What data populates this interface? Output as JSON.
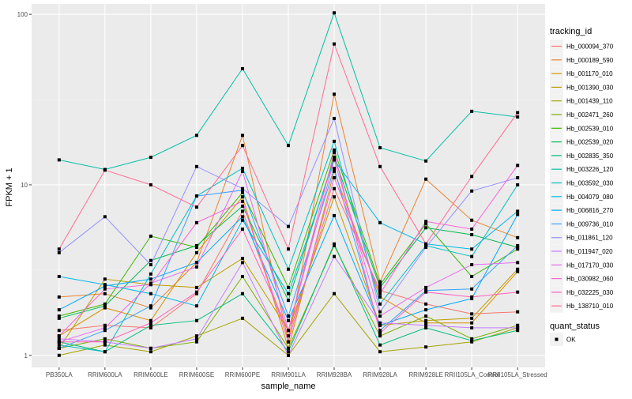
{
  "chart_data": {
    "type": "line",
    "xlabel": "sample_name",
    "ylabel": "FPKM + 1",
    "yscale": "log10",
    "ylim": [
      0.85,
      115
    ],
    "yticks": [
      1,
      10,
      100
    ],
    "ytick_labels": [
      "1",
      "10",
      "100"
    ],
    "grid": true,
    "legend_position": "right",
    "categories": [
      "PB350LA",
      "RRIM600LA",
      "RRIM600LE",
      "RRIM600SE",
      "RRIM600PE",
      "RRIM901LA",
      "RRIM928BA",
      "RRIM928LA",
      "RRIM928LE",
      "RRII105LA_Control",
      "RRII105LA_Stressed"
    ],
    "legend_color_title": "tracking_id",
    "legend_shape_title": "quant_status",
    "legend_shape_items": [
      {
        "label": "OK",
        "shape": "square"
      }
    ],
    "series": [
      {
        "name": "Hb_000094_370",
        "color": "#F8766D",
        "values": [
          1.4,
          1.5,
          1.45,
          2.3,
          7.0,
          1.3,
          9.5,
          2.4,
          2.0,
          1.75,
          1.8
        ]
      },
      {
        "name": "Hb_000189_590",
        "color": "#EA8331",
        "values": [
          2.2,
          2.3,
          1.9,
          3.5,
          19.5,
          1.2,
          34.0,
          2.7,
          10.8,
          6.2,
          4.9
        ]
      },
      {
        "name": "Hb_001170_010",
        "color": "#D89000",
        "values": [
          1.3,
          1.9,
          1.6,
          4.0,
          8.5,
          1.1,
          12.0,
          2.2,
          1.55,
          1.55,
          3.1
        ]
      },
      {
        "name": "Hb_001390_030",
        "color": "#C09B00",
        "values": [
          1.1,
          2.8,
          2.6,
          2.5,
          3.7,
          1.4,
          8.5,
          1.5,
          1.6,
          1.65,
          3.2
        ]
      },
      {
        "name": "Hb_001439_110",
        "color": "#A3A500",
        "values": [
          1.0,
          1.15,
          1.05,
          1.3,
          1.65,
          1.0,
          2.3,
          1.05,
          1.12,
          1.2,
          1.45
        ]
      },
      {
        "name": "Hb_002471_260",
        "color": "#7CAE00",
        "values": [
          1.1,
          1.25,
          1.1,
          1.2,
          2.9,
          1.1,
          4.4,
          1.3,
          1.7,
          1.25,
          1.5
        ]
      },
      {
        "name": "Hb_002539_010",
        "color": "#39B600",
        "values": [
          1.7,
          2.0,
          5.0,
          4.3,
          9.0,
          2.5,
          16.0,
          2.6,
          5.9,
          2.9,
          4.2
        ]
      },
      {
        "name": "Hb_002539_020",
        "color": "#00BB4E",
        "values": [
          1.65,
          1.95,
          3.6,
          4.4,
          7.5,
          2.1,
          14.5,
          2.5,
          5.6,
          5.1,
          4.3
        ]
      },
      {
        "name": "Hb_002835_350",
        "color": "#00BF7D",
        "values": [
          1.2,
          1.05,
          1.5,
          1.6,
          2.3,
          1.05,
          4.5,
          1.15,
          1.45,
          1.22,
          1.4
        ]
      },
      {
        "name": "Hb_003226_120",
        "color": "#00C1A3",
        "values": [
          14.0,
          12.3,
          14.5,
          19.5,
          48.0,
          17.0,
          102.0,
          16.5,
          13.8,
          27.0,
          25.0
        ]
      },
      {
        "name": "Hb_003592_030",
        "color": "#00BFC4",
        "values": [
          1.15,
          1.05,
          3.0,
          8.6,
          12.5,
          3.2,
          18.0,
          2.0,
          4.4,
          3.8,
          10.0
        ]
      },
      {
        "name": "Hb_004079_080",
        "color": "#00B8E7",
        "values": [
          2.9,
          2.6,
          2.3,
          1.95,
          6.2,
          2.3,
          14.0,
          6.0,
          4.5,
          4.2,
          7.0
        ]
      },
      {
        "name": "Hb_006816_270",
        "color": "#00A9FF",
        "values": [
          1.85,
          2.55,
          2.8,
          3.5,
          6.5,
          1.6,
          6.6,
          1.5,
          1.85,
          2.15,
          6.7
        ]
      },
      {
        "name": "Hb_009736_010",
        "color": "#35A2FF",
        "values": [
          1.1,
          1.4,
          1.95,
          8.6,
          9.3,
          1.7,
          12.5,
          1.4,
          2.4,
          2.45,
          4.4
        ]
      },
      {
        "name": "Hb_011861_120",
        "color": "#9590FF",
        "values": [
          4.0,
          6.5,
          3.4,
          12.8,
          9.5,
          5.7,
          24.5,
          1.8,
          4.3,
          9.2,
          11.0
        ]
      },
      {
        "name": "Hb_011947_020",
        "color": "#C77CFF",
        "values": [
          1.25,
          1.2,
          1.1,
          1.25,
          3.5,
          1.0,
          3.8,
          1.55,
          1.5,
          1.45,
          1.45
        ]
      },
      {
        "name": "Hb_017170_030",
        "color": "#E76BF3",
        "values": [
          1.2,
          1.45,
          2.65,
          3.3,
          12.0,
          1.4,
          14.0,
          1.7,
          2.5,
          3.4,
          3.5
        ]
      },
      {
        "name": "Hb_030982_060",
        "color": "#FA62DB",
        "values": [
          1.3,
          2.45,
          2.6,
          6.0,
          8.0,
          1.2,
          11.0,
          2.3,
          6.1,
          5.5,
          13.0
        ]
      },
      {
        "name": "Hb_032225_030",
        "color": "#FF62BC",
        "values": [
          1.2,
          1.2,
          1.55,
          2.35,
          5.5,
          1.4,
          15.5,
          1.35,
          2.35,
          2.2,
          2.35
        ]
      },
      {
        "name": "Hb_138710_010",
        "color": "#FF6C91",
        "values": [
          4.2,
          12.2,
          10.0,
          7.4,
          17.0,
          4.2,
          67.0,
          12.8,
          4.5,
          11.2,
          26.5
        ]
      }
    ]
  }
}
